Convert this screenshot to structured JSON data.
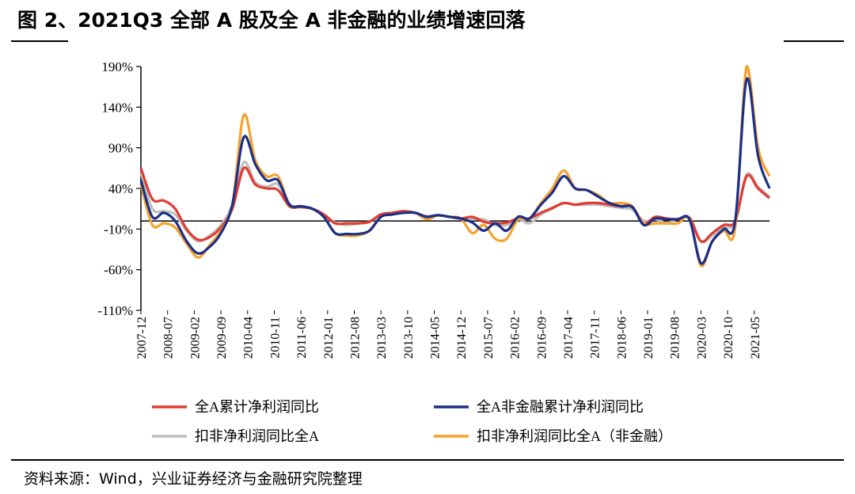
{
  "header": {
    "title": "图 2、2021Q3 全部 A 股及全 A 非金融的业绩增速回落"
  },
  "footer": {
    "source": "资料来源：Wind，兴业证券经济与金融研究院整理"
  },
  "chart_data": {
    "type": "line",
    "title": "图 2、2021Q3 全部 A 股及全 A 非金融的业绩增速回落",
    "xlabel": "",
    "ylabel": "",
    "ylim": [
      -110,
      190
    ],
    "yticks": [
      "190%",
      "140%",
      "90%",
      "40%",
      "-10%",
      "-60%",
      "-110%"
    ],
    "ytick_values": [
      190,
      140,
      90,
      40,
      -10,
      -60,
      -110
    ],
    "xticks": [
      "2007-12",
      "2008-07",
      "2009-02",
      "2009-09",
      "2010-04",
      "2010-11",
      "2011-06",
      "2012-01",
      "2012-08",
      "2013-03",
      "2013-10",
      "2014-05",
      "2014-12",
      "2015-07",
      "2016-02",
      "2016-09",
      "2017-04",
      "2017-11",
      "2018-06",
      "2019-01",
      "2019-08",
      "2020-03",
      "2020-10",
      "2021-05"
    ],
    "x": [
      "2007-12",
      "2008-03",
      "2008-06",
      "2008-09",
      "2008-12",
      "2009-03",
      "2009-06",
      "2009-09",
      "2009-12",
      "2010-03",
      "2010-06",
      "2010-09",
      "2010-12",
      "2011-03",
      "2011-06",
      "2011-09",
      "2011-12",
      "2012-03",
      "2012-06",
      "2012-09",
      "2012-12",
      "2013-03",
      "2013-06",
      "2013-09",
      "2013-12",
      "2014-03",
      "2014-06",
      "2014-09",
      "2014-12",
      "2015-03",
      "2015-06",
      "2015-09",
      "2015-12",
      "2016-03",
      "2016-06",
      "2016-09",
      "2016-12",
      "2017-03",
      "2017-06",
      "2017-09",
      "2017-12",
      "2018-03",
      "2018-06",
      "2018-09",
      "2018-12",
      "2019-03",
      "2019-06",
      "2019-09",
      "2019-12",
      "2020-03",
      "2020-06",
      "2020-09",
      "2020-12",
      "2021-03",
      "2021-06",
      "2021-09"
    ],
    "series": [
      {
        "name": "全A累计净利润同比",
        "color": "#e03c31",
        "values": [
          65,
          27,
          25,
          15,
          -10,
          -23,
          -20,
          -8,
          15,
          65,
          45,
          40,
          38,
          18,
          17,
          15,
          8,
          -3,
          -3,
          -3,
          -1,
          8,
          10,
          12,
          10,
          5,
          7,
          5,
          3,
          5,
          -1,
          -3,
          -2,
          3,
          3,
          10,
          16,
          22,
          20,
          22,
          22,
          20,
          18,
          17,
          -3,
          5,
          3,
          2,
          4,
          -25,
          -15,
          -5,
          0,
          55,
          40,
          28
        ]
      },
      {
        "name": "全A非金融累计净利润同比",
        "color": "#1a2f8a",
        "values": [
          50,
          5,
          10,
          0,
          -25,
          -40,
          -32,
          -15,
          20,
          103,
          70,
          50,
          50,
          20,
          18,
          15,
          5,
          -15,
          -16,
          -16,
          -12,
          5,
          8,
          10,
          10,
          5,
          7,
          5,
          3,
          -2,
          -12,
          -3,
          -12,
          5,
          3,
          20,
          35,
          55,
          40,
          38,
          30,
          22,
          18,
          17,
          -5,
          3,
          2,
          2,
          2,
          -52,
          -25,
          -10,
          0,
          174,
          80,
          40
        ]
      },
      {
        "name": "扣非净利润同比全A",
        "color": "#bfbfbf",
        "values": [
          60,
          15,
          12,
          8,
          -12,
          -25,
          -18,
          -5,
          20,
          72,
          48,
          42,
          45,
          20,
          18,
          15,
          8,
          -2,
          -5,
          -3,
          -1,
          8,
          10,
          12,
          10,
          6,
          7,
          5,
          3,
          2,
          2,
          -5,
          -5,
          2,
          -3,
          8,
          15,
          22,
          20,
          20,
          20,
          18,
          16,
          14,
          0,
          2,
          -3,
          3,
          2,
          -25,
          -18,
          -8,
          -2,
          57,
          42,
          30
        ]
      },
      {
        "name": "扣非净利润同比全A（非金融）",
        "color": "#f7a12c",
        "values": [
          45,
          -5,
          -3,
          -8,
          -28,
          -45,
          -30,
          -12,
          20,
          130,
          75,
          55,
          55,
          20,
          18,
          15,
          5,
          -15,
          -18,
          -18,
          -12,
          5,
          8,
          10,
          10,
          2,
          7,
          5,
          3,
          -15,
          -5,
          -22,
          -22,
          2,
          3,
          22,
          40,
          62,
          40,
          38,
          32,
          22,
          22,
          18,
          -3,
          -3,
          -3,
          -3,
          3,
          -55,
          -25,
          -12,
          -8,
          190,
          90,
          55
        ]
      }
    ],
    "legend": {
      "placement": "bottom",
      "entries": [
        "全A累计净利润同比",
        "全A非金融累计净利润同比",
        "扣非净利润同比全A",
        "扣非净利润同比全A（非金融）"
      ]
    },
    "grid": false
  }
}
